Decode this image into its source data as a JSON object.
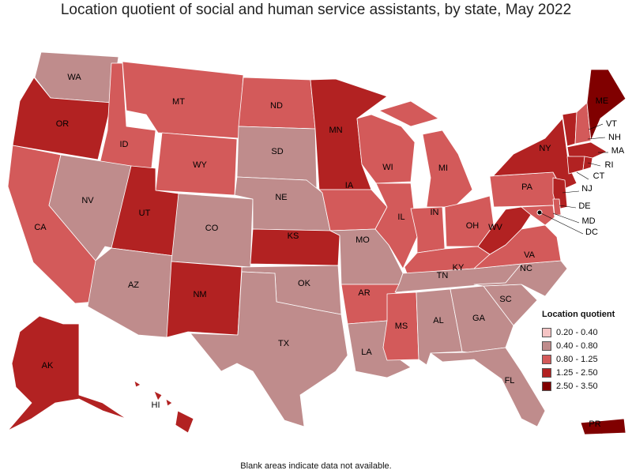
{
  "title": "Location quotient of social and human service assistants, by state, May 2022",
  "footnote": "Blank areas indicate data not available.",
  "legend": {
    "title": "Location quotient",
    "items": [
      {
        "label": "0.20 - 0.40",
        "color": "#f5c4c4"
      },
      {
        "label": "0.40 - 0.80",
        "color": "#bf8c8c"
      },
      {
        "label": "0.80 - 1.25",
        "color": "#d35a5a"
      },
      {
        "label": "1.25 - 2.50",
        "color": "#b22222"
      },
      {
        "label": "2.50 - 3.50",
        "color": "#800000"
      }
    ]
  },
  "states": {
    "WA": 1,
    "OR": 3,
    "CA": 2,
    "ID": 2,
    "NV": 1,
    "MT": 2,
    "WY": 2,
    "UT": 3,
    "AZ": 1,
    "CO": 1,
    "NM": 3,
    "ND": 2,
    "SD": 1,
    "NE": 1,
    "KS": 3,
    "OK": 1,
    "TX": 1,
    "MN": 3,
    "IA": 2,
    "MO": 1,
    "AR": 2,
    "LA": 1,
    "WI": 2,
    "IL": 2,
    "MI": 2,
    "IN": 2,
    "OH": 2,
    "KY": 2,
    "TN": 1,
    "MS": 2,
    "AL": 1,
    "GA": 1,
    "FL": 1,
    "SC": 1,
    "NC": 1,
    "VA": 2,
    "WV": 3,
    "PA": 2,
    "NY": 3,
    "VT": 3,
    "NH": 2,
    "ME": 4,
    "MA": 3,
    "RI": 3,
    "CT": 3,
    "NJ": 3,
    "DE": 2,
    "MD": 2,
    "DC": 1,
    "AK": 3,
    "HI": 3,
    "PR": 4
  }
}
